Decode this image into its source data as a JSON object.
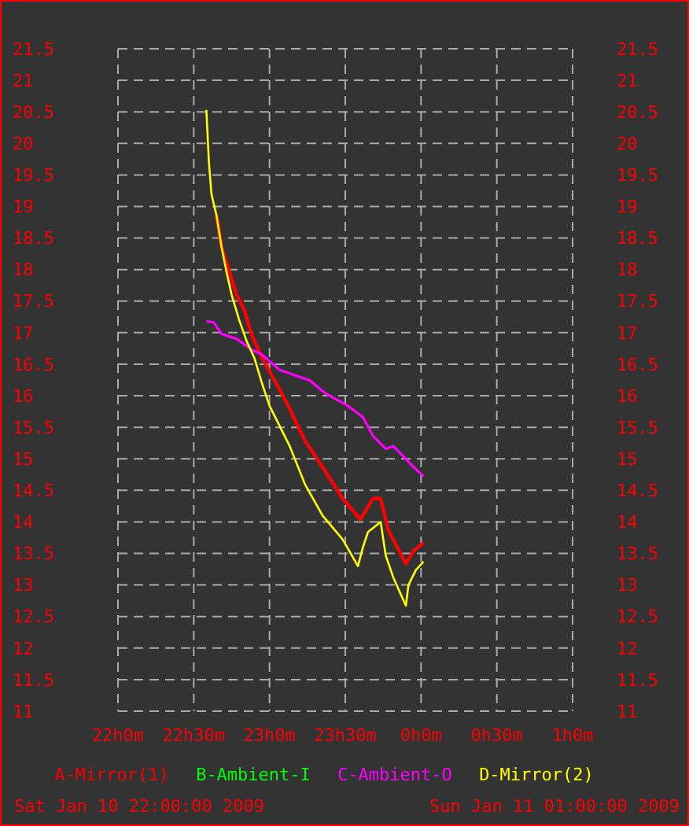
{
  "chart_data": {
    "type": "line",
    "xlim": [
      "2009-01-10T22:00",
      "2009-01-11T01:00"
    ],
    "xticks": [
      {
        "value": "2009-01-10T22:00",
        "label": "22h0m"
      },
      {
        "value": "2009-01-10T22:30",
        "label": "22h30m"
      },
      {
        "value": "2009-01-10T23:00",
        "label": "23h0m"
      },
      {
        "value": "2009-01-10T23:30",
        "label": "23h30m"
      },
      {
        "value": "2009-01-11T00:00",
        "label": "0h0m"
      },
      {
        "value": "2009-01-11T00:30",
        "label": "0h30m"
      },
      {
        "value": "2009-01-11T01:00",
        "label": "1h0m"
      }
    ],
    "ylim": [
      11,
      21.5
    ],
    "yticks": [
      11,
      11.5,
      12,
      12.5,
      13,
      13.5,
      14,
      14.5,
      15,
      15.5,
      16,
      16.5,
      17,
      17.5,
      18,
      18.5,
      19,
      19.5,
      20,
      20.5,
      21,
      21.5
    ],
    "y2lim": [
      11,
      21.5
    ],
    "y2ticks": [
      11,
      11.5,
      12,
      12.5,
      13,
      13.5,
      14,
      14.5,
      15,
      15.5,
      16,
      16.5,
      17,
      17.5,
      18,
      18.5,
      19,
      19.5,
      20,
      20.5,
      21,
      21.5
    ],
    "grid": true,
    "legend": "bottom",
    "line_style": "solid",
    "marker": "none",
    "annotations": [
      "Sat Jan 10 22:00:00 2009",
      "Sun Jan 11 01:00:00 2009"
    ],
    "series": [
      {
        "name": "A-Mirror(1)",
        "color": "#ff0000",
        "x": [
          "2009-01-10T22:39",
          "2009-01-10T22:41",
          "2009-01-10T22:47",
          "2009-01-10T22:50",
          "2009-01-10T22:53",
          "2009-01-10T22:57",
          "2009-01-10T23:06",
          "2009-01-10T23:08",
          "2009-01-10T23:14",
          "2009-01-10T23:21",
          "2009-01-10T23:29",
          "2009-01-10T23:36",
          "2009-01-10T23:41",
          "2009-01-10T23:44",
          "2009-01-10T23:47",
          "2009-01-10T23:54",
          "2009-01-10T23:57",
          "2009-01-11T00:01"
        ],
        "values": [
          18.86,
          18.36,
          17.6,
          17.36,
          16.96,
          16.6,
          15.95,
          15.79,
          15.29,
          14.87,
          14.37,
          14.04,
          14.37,
          14.37,
          13.87,
          13.34,
          13.54,
          13.67
        ]
      },
      {
        "name": "B-Ambient-I",
        "color": "#00ff00"
      },
      {
        "name": "C-Ambient-O",
        "color": "#ff00ff",
        "x": [
          "2009-01-10T22:35",
          "2009-01-10T22:38",
          "2009-01-10T22:41",
          "2009-01-10T22:47",
          "2009-01-10T22:53",
          "2009-01-10T22:57",
          "2009-01-10T23:04",
          "2009-01-10T23:16",
          "2009-01-10T23:22",
          "2009-01-10T23:31",
          "2009-01-10T23:37",
          "2009-01-10T23:41",
          "2009-01-10T23:46",
          "2009-01-10T23:49",
          "2009-01-10T23:53",
          "2009-01-10T23:57",
          "2009-01-11T00:01"
        ],
        "values": [
          17.18,
          17.16,
          16.98,
          16.9,
          16.73,
          16.65,
          16.41,
          16.24,
          16.04,
          15.84,
          15.66,
          15.36,
          15.16,
          15.2,
          15.04,
          14.87,
          14.72
        ]
      },
      {
        "name": "D-Mirror(2)",
        "color": "#ffff00",
        "x": [
          "2009-01-10T22:35",
          "2009-01-10T22:36",
          "2009-01-10T22:37",
          "2009-01-10T22:39",
          "2009-01-10T22:41",
          "2009-01-10T22:43",
          "2009-01-10T22:45",
          "2009-01-10T22:48",
          "2009-01-10T22:51",
          "2009-01-10T22:54",
          "2009-01-10T22:57",
          "2009-01-10T23:00",
          "2009-01-10T23:08",
          "2009-01-10T23:14",
          "2009-01-10T23:21",
          "2009-01-10T23:29",
          "2009-01-10T23:35",
          "2009-01-10T23:37",
          "2009-01-10T23:39",
          "2009-01-10T23:44",
          "2009-01-10T23:46",
          "2009-01-10T23:49",
          "2009-01-10T23:54",
          "2009-01-10T23:55",
          "2009-01-10T23:58",
          "2009-01-11T00:01"
        ],
        "values": [
          20.53,
          19.7,
          19.2,
          18.86,
          18.36,
          17.96,
          17.6,
          17.2,
          16.86,
          16.6,
          16.2,
          15.84,
          15.2,
          14.6,
          14.1,
          13.72,
          13.3,
          13.6,
          13.84,
          14.0,
          13.47,
          13.12,
          12.67,
          13.0,
          13.24,
          13.37
        ]
      }
    ]
  }
}
